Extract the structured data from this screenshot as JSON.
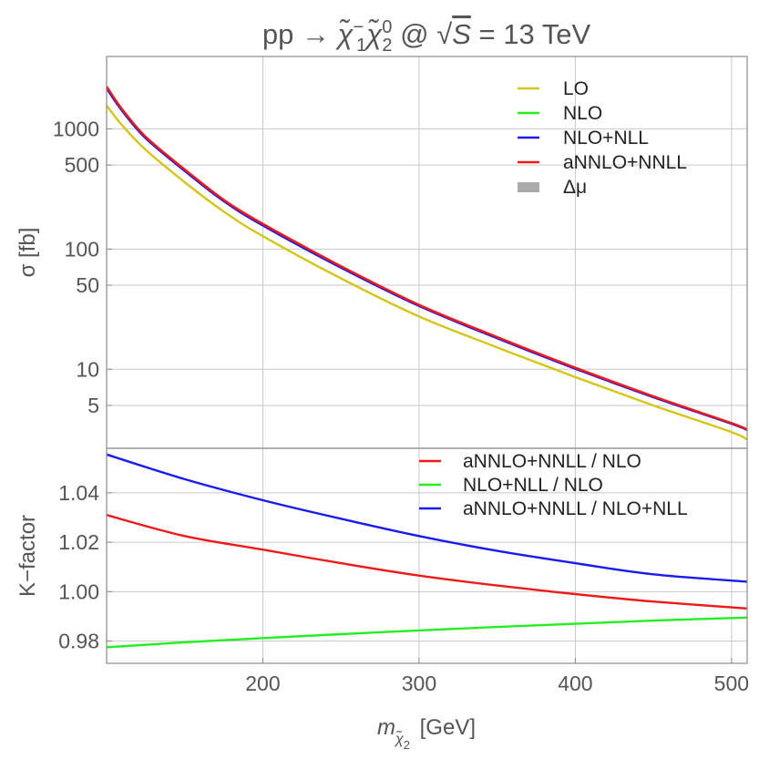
{
  "title": {
    "lhs": "pp → ",
    "chi1_sup": "−",
    "chi1_sub": "1",
    "chi2_sup": "0",
    "chi2_sub": "2",
    "at": " @ ",
    "sqrt_s": "S",
    "energy": " = 13 TeV"
  },
  "colors": {
    "LO": "#d4c51a",
    "NLO": "#22ee22",
    "NLO+NLL": "#1a1aee",
    "aNNLO+NNLL": "#ee1a1a",
    "band": "#aaaaaa"
  },
  "chart_data": [
    {
      "type": "line",
      "panel": "top",
      "yscale": "log",
      "ylabel": "σ  [fb]",
      "xlim": [
        100,
        510
      ],
      "ylim": [
        2.2,
        4000
      ],
      "yticks": [
        5,
        10,
        50,
        100,
        500,
        1000
      ],
      "ytick_labels": [
        "5",
        "10",
        "50",
        "100",
        "500",
        "1000"
      ],
      "grid": true,
      "legend_position": "top-right",
      "x": [
        100,
        110,
        125,
        150,
        175,
        200,
        250,
        300,
        350,
        400,
        450,
        500,
        510
      ],
      "series": [
        {
          "name": "LO",
          "values": [
            1560,
            1070,
            670,
            360,
            205,
            128,
            57,
            27.5,
            15.2,
            8.6,
            5.0,
            3.0,
            2.6
          ]
        },
        {
          "name": "NLO",
          "values": [
            2180,
            1420,
            840,
            450,
            252,
            159,
            71,
            34,
            18.3,
            10.2,
            5.9,
            3.55,
            3.15
          ]
        },
        {
          "name": "NLO+NLL",
          "values": [
            2170,
            1410,
            835,
            447,
            250,
            157,
            70,
            33.6,
            18.1,
            10.1,
            5.85,
            3.52,
            3.12
          ]
        },
        {
          "name": "aNNLO+NNLL",
          "values": [
            2250,
            1455,
            860,
            460,
            257,
            162,
            72,
            34.3,
            18.5,
            10.3,
            5.95,
            3.56,
            3.16
          ]
        }
      ],
      "legend": [
        "LO",
        "NLO",
        "NLO+NLL",
        "aNNLO+NNLL",
        "Δμ"
      ]
    },
    {
      "type": "line",
      "panel": "bottom",
      "ylabel": "K−factor",
      "xlabel": "m [GeV]",
      "xlabel_symbol": "m",
      "xlabel_sub": "χ′2",
      "xlabel_unit": " [GeV]",
      "xlim": [
        100,
        510
      ],
      "ylim": [
        0.971,
        1.058
      ],
      "yticks": [
        0.98,
        1.0,
        1.02,
        1.04
      ],
      "ytick_labels": [
        "0.98",
        "1.00",
        "1.02",
        "1.04"
      ],
      "xticks": [
        200,
        300,
        400,
        500
      ],
      "xtick_labels": [
        "200",
        "300",
        "400",
        "500"
      ],
      "grid": true,
      "legend_position": "top-right",
      "x": [
        100,
        150,
        200,
        250,
        300,
        350,
        400,
        450,
        510
      ],
      "series": [
        {
          "name": "aNNLO+NNLL / NLO",
          "values": [
            1.031,
            1.0225,
            1.017,
            1.0115,
            1.0065,
            1.0025,
            0.999,
            0.996,
            0.9932
          ]
        },
        {
          "name": "NLO+NLL / NLO",
          "values": [
            0.9775,
            0.9795,
            0.9812,
            0.9828,
            0.9843,
            0.9857,
            0.987,
            0.9883,
            0.9895
          ]
        },
        {
          "name": "aNNLO+NNLL / NLO+NLL",
          "values": [
            1.0555,
            1.0455,
            1.037,
            1.0295,
            1.0225,
            1.0165,
            1.0115,
            1.007,
            1.004
          ]
        }
      ],
      "legend": [
        "aNNLO+NNLL / NLO",
        "NLO+NLL / NLO",
        "aNNLO+NNLL / NLO+NLL"
      ]
    }
  ]
}
